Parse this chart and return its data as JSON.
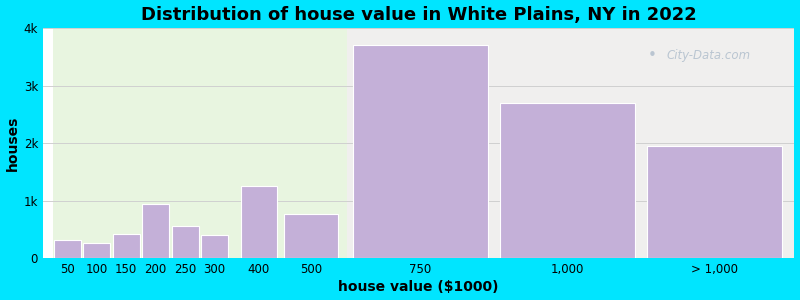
{
  "title": "Distribution of house value in White Plains, NY in 2022",
  "xlabel": "house value ($1000)",
  "ylabel": "houses",
  "bar_labels": [
    "50",
    "100",
    "150",
    "200",
    "250",
    "300",
    "400",
    "500",
    "750",
    "1,000",
    "> 1,000"
  ],
  "bar_values": [
    320,
    270,
    430,
    950,
    560,
    400,
    1250,
    770,
    3700,
    2700,
    1950
  ],
  "bar_color": "#c4b0d8",
  "bar_edgecolor": "#ffffff",
  "ylim": [
    0,
    4000
  ],
  "yticks": [
    0,
    1000,
    2000,
    3000,
    4000
  ],
  "ytick_labels": [
    "0",
    "1k",
    "2k",
    "3k",
    "4k"
  ],
  "background_outer": "#00e5ff",
  "bg_left_color": "#e8f5e0",
  "bg_right_color": "#f0efee",
  "grid_color": "#d0d0d0",
  "title_fontsize": 13,
  "axis_label_fontsize": 10,
  "tick_fontsize": 8.5
}
